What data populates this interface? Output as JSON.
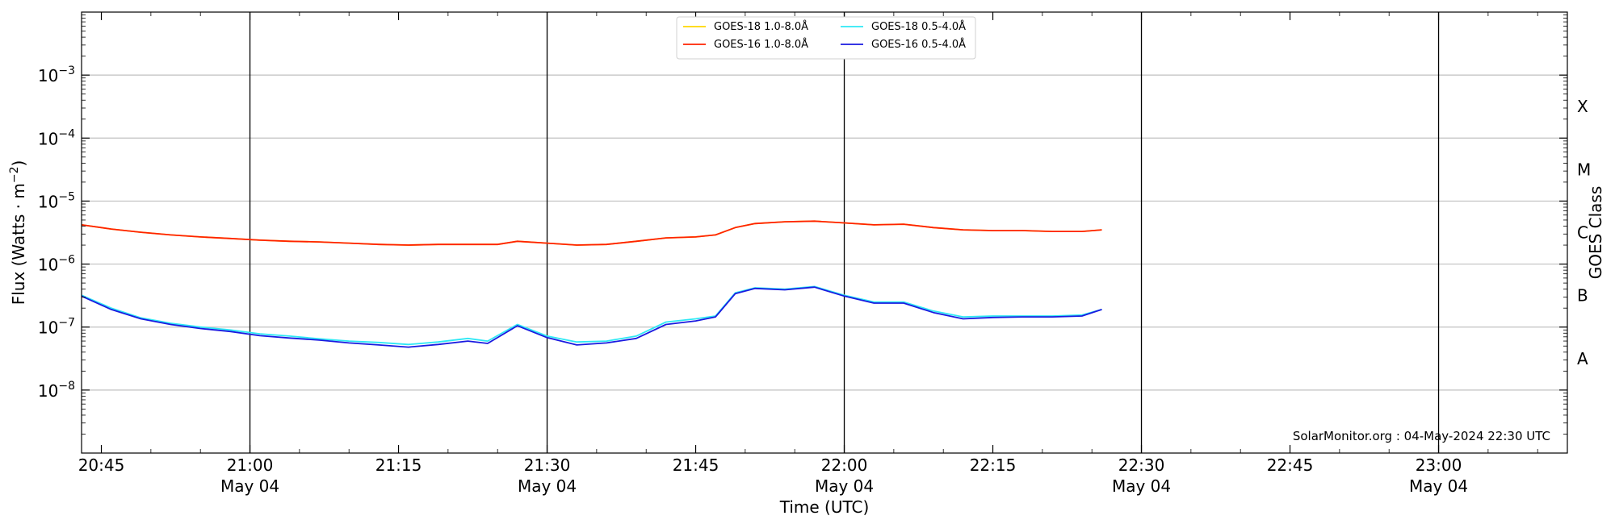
{
  "chart_data": {
    "type": "line",
    "xlabel": "Time (UTC)",
    "ylabel": "Flux (Watts · m",
    "ylabel_sup": "−2",
    "ylabel_close": ")",
    "right_label": "GOES Class",
    "credit": "SolarMonitor.org : 04-May-2024 22:30 UTC",
    "xlim": [
      "20:43",
      "23:13"
    ],
    "ylog": true,
    "ylim": [
      1e-09,
      0.01
    ],
    "grid": "horizontal",
    "legend_position": "top-center",
    "x_ticks": [
      {
        "t": "20:45",
        "label": "20:45",
        "date": ""
      },
      {
        "t": "21:00",
        "label": "21:00",
        "date": "May 04"
      },
      {
        "t": "21:15",
        "label": "21:15",
        "date": ""
      },
      {
        "t": "21:30",
        "label": "21:30",
        "date": "May 04"
      },
      {
        "t": "21:45",
        "label": "21:45",
        "date": ""
      },
      {
        "t": "22:00",
        "label": "22:00",
        "date": "May 04"
      },
      {
        "t": "22:15",
        "label": "22:15",
        "date": ""
      },
      {
        "t": "22:30",
        "label": "22:30",
        "date": "May 04"
      },
      {
        "t": "22:45",
        "label": "22:45",
        "date": ""
      },
      {
        "t": "23:00",
        "label": "23:00",
        "date": "May 04"
      }
    ],
    "y_ticks": [
      {
        "value": 1e-08,
        "base": "10",
        "exp": "−8"
      },
      {
        "value": 1e-07,
        "base": "10",
        "exp": "−7"
      },
      {
        "value": 1e-06,
        "base": "10",
        "exp": "−6"
      },
      {
        "value": 1e-05,
        "base": "10",
        "exp": "−5"
      },
      {
        "value": 0.0001,
        "base": "10",
        "exp": "−4"
      },
      {
        "value": 0.001,
        "base": "10",
        "exp": "−3"
      }
    ],
    "goes_classes": [
      {
        "label": "A",
        "value": 3.16e-08
      },
      {
        "label": "B",
        "value": 3.16e-07
      },
      {
        "label": "C",
        "value": 3.16e-06
      },
      {
        "label": "M",
        "value": 3.16e-05
      },
      {
        "label": "X",
        "value": 0.000316
      }
    ],
    "series": [
      {
        "name": "GOES-18 1.0-8.0Å",
        "color": "#ffd700",
        "x": [
          "20:43",
          "20:46",
          "20:49",
          "20:52",
          "20:55",
          "20:58",
          "21:01",
          "21:04",
          "21:07",
          "21:10",
          "21:13",
          "21:16",
          "21:19",
          "21:22",
          "21:25",
          "21:27",
          "21:30",
          "21:33",
          "21:36",
          "21:39",
          "21:42",
          "21:45",
          "21:47",
          "21:49",
          "21:51",
          "21:54",
          "21:57",
          "22:00",
          "22:03",
          "22:06",
          "22:09",
          "22:12",
          "22:15",
          "22:18",
          "22:21",
          "22:24",
          "22:26"
        ],
        "values": [
          4.2e-06,
          3.6e-06,
          3.2e-06,
          2.9e-06,
          2.7e-06,
          2.55e-06,
          2.4e-06,
          2.3e-06,
          2.25e-06,
          2.15e-06,
          2.05e-06,
          2e-06,
          2.05e-06,
          2.05e-06,
          2.05e-06,
          2.3e-06,
          2.15e-06,
          2e-06,
          2.05e-06,
          2.3e-06,
          2.6e-06,
          2.7e-06,
          2.9e-06,
          3.8e-06,
          4.4e-06,
          4.7e-06,
          4.8e-06,
          4.5e-06,
          4.2e-06,
          4.3e-06,
          3.8e-06,
          3.5e-06,
          3.4e-06,
          3.4e-06,
          3.3e-06,
          3.3e-06,
          3.5e-06
        ]
      },
      {
        "name": "GOES-16 1.0-8.0Å",
        "color": "#ff2200",
        "x": [
          "20:43",
          "20:46",
          "20:49",
          "20:52",
          "20:55",
          "20:58",
          "21:01",
          "21:04",
          "21:07",
          "21:10",
          "21:13",
          "21:16",
          "21:19",
          "21:22",
          "21:25",
          "21:27",
          "21:30",
          "21:33",
          "21:36",
          "21:39",
          "21:42",
          "21:45",
          "21:47",
          "21:49",
          "21:51",
          "21:54",
          "21:57",
          "22:00",
          "22:03",
          "22:06",
          "22:09",
          "22:12",
          "22:15",
          "22:18",
          "22:21",
          "22:24",
          "22:26"
        ],
        "values": [
          4.2e-06,
          3.6e-06,
          3.2e-06,
          2.9e-06,
          2.7e-06,
          2.55e-06,
          2.4e-06,
          2.3e-06,
          2.25e-06,
          2.15e-06,
          2.05e-06,
          2e-06,
          2.05e-06,
          2.05e-06,
          2.05e-06,
          2.3e-06,
          2.15e-06,
          2e-06,
          2.05e-06,
          2.3e-06,
          2.6e-06,
          2.7e-06,
          2.9e-06,
          3.8e-06,
          4.4e-06,
          4.7e-06,
          4.8e-06,
          4.5e-06,
          4.2e-06,
          4.3e-06,
          3.8e-06,
          3.5e-06,
          3.4e-06,
          3.4e-06,
          3.3e-06,
          3.3e-06,
          3.5e-06
        ]
      },
      {
        "name": "GOES-18 0.5-4.0Å",
        "color": "#2ee8f5",
        "x": [
          "20:43",
          "20:46",
          "20:49",
          "20:52",
          "20:55",
          "20:58",
          "21:01",
          "21:04",
          "21:07",
          "21:10",
          "21:13",
          "21:16",
          "21:19",
          "21:22",
          "21:24",
          "21:27",
          "21:30",
          "21:33",
          "21:36",
          "21:39",
          "21:42",
          "21:45",
          "21:47",
          "21:49",
          "21:51",
          "21:54",
          "21:57",
          "22:00",
          "22:03",
          "22:06",
          "22:09",
          "22:12",
          "22:15",
          "22:18",
          "22:21",
          "22:24",
          "22:26"
        ],
        "values": [
          3.2e-07,
          2e-07,
          1.4e-07,
          1.15e-07,
          1e-07,
          9e-08,
          7.8e-08,
          7.2e-08,
          6.5e-08,
          6e-08,
          5.7e-08,
          5.3e-08,
          5.8e-08,
          6.6e-08,
          6e-08,
          1.1e-07,
          7.2e-08,
          5.8e-08,
          6e-08,
          7.2e-08,
          1.2e-07,
          1.35e-07,
          1.5e-07,
          3.5e-07,
          4.2e-07,
          4e-07,
          4.4e-07,
          3.2e-07,
          2.5e-07,
          2.5e-07,
          1.8e-07,
          1.45e-07,
          1.5e-07,
          1.5e-07,
          1.5e-07,
          1.55e-07,
          1.9e-07
        ]
      },
      {
        "name": "GOES-16 0.5-4.0Å",
        "color": "#1a1ae0",
        "x": [
          "20:43",
          "20:46",
          "20:49",
          "20:52",
          "20:55",
          "20:58",
          "21:01",
          "21:04",
          "21:07",
          "21:10",
          "21:13",
          "21:16",
          "21:19",
          "21:22",
          "21:24",
          "21:27",
          "21:30",
          "21:33",
          "21:36",
          "21:39",
          "21:42",
          "21:45",
          "21:47",
          "21:49",
          "21:51",
          "21:54",
          "21:57",
          "22:00",
          "22:03",
          "22:06",
          "22:09",
          "22:12",
          "22:15",
          "22:18",
          "22:21",
          "22:24",
          "22:26"
        ],
        "values": [
          3.1e-07,
          1.9e-07,
          1.35e-07,
          1.1e-07,
          9.5e-08,
          8.5e-08,
          7.3e-08,
          6.7e-08,
          6.2e-08,
          5.6e-08,
          5.2e-08,
          4.8e-08,
          5.3e-08,
          6e-08,
          5.5e-08,
          1.05e-07,
          6.8e-08,
          5.2e-08,
          5.6e-08,
          6.6e-08,
          1.1e-07,
          1.25e-07,
          1.45e-07,
          3.4e-07,
          4.1e-07,
          3.9e-07,
          4.3e-07,
          3.1e-07,
          2.4e-07,
          2.4e-07,
          1.7e-07,
          1.35e-07,
          1.42e-07,
          1.45e-07,
          1.45e-07,
          1.5e-07,
          1.9e-07
        ]
      }
    ]
  }
}
